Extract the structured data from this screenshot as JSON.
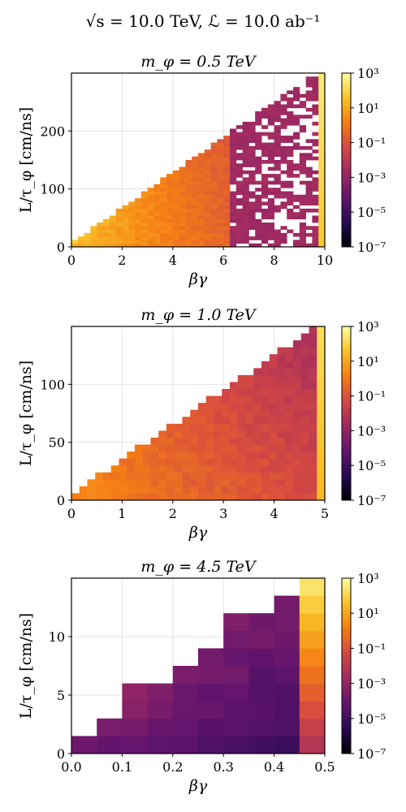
{
  "figure": {
    "suptitle": "√s = 10.0 TeV, ℒ = 10.0 ab⁻¹"
  },
  "colorbar": {
    "colormap": "inferno",
    "scale": "log",
    "range": [
      1e-07,
      1000
    ],
    "tick_labels": [
      "10³",
      "10¹",
      "10⁻¹",
      "10⁻³",
      "10⁻⁵",
      "10⁻⁷"
    ],
    "tick_values": [
      1000,
      10,
      0.1,
      0.001,
      1e-05,
      1e-07
    ]
  },
  "chart_data": [
    {
      "type": "heatmap",
      "title": "m_φ = 0.5 TeV",
      "xlabel": "βγ",
      "ylabel": "L/τ_φ [cm/ns]",
      "xlim": [
        0,
        10
      ],
      "ylim": [
        0,
        300
      ],
      "xticks": [
        0,
        2,
        4,
        6,
        8,
        10
      ],
      "yticks": [
        0,
        100,
        200
      ],
      "grid": true,
      "nx": 40,
      "ny": 50,
      "log10_value_near_diagonal_low_bg": 1.7,
      "log10_value_near_diagonal_high_bg": -2.5,
      "log10_value_at_bottom_low_bg": 1.2,
      "log10_value_at_bottom_high_bg": -1.5,
      "last_column_log10_value": 2.5,
      "diagonal_slope_per_unit_bg": 30.5,
      "sparse_region_start_bg": 6.3
    },
    {
      "type": "heatmap",
      "title": "m_φ = 1.0 TeV",
      "xlabel": "βγ",
      "ylabel": "L/τ_φ [cm/ns]",
      "xlim": [
        0,
        5
      ],
      "ylim": [
        0,
        150
      ],
      "xticks": [
        0,
        1,
        2,
        3,
        4,
        5
      ],
      "yticks": [
        0,
        50,
        100
      ],
      "grid": true,
      "nx": 32,
      "ny": 25,
      "log10_value_near_diagonal_low_bg": 0.6,
      "log10_value_near_diagonal_high_bg": -2.5,
      "log10_value_at_bottom_low_bg": 0.3,
      "log10_value_at_bottom_high_bg": -1.3,
      "last_column_log10_value": 2.2,
      "diagonal_slope_per_unit_bg": 30.0,
      "sparse_region_start_bg": 99
    },
    {
      "type": "heatmap",
      "title": "m_φ = 4.5 TeV",
      "xlabel": "βγ",
      "ylabel": "L/τ_φ [cm/ns]",
      "xlim": [
        0,
        0.5
      ],
      "ylim": [
        0,
        15
      ],
      "xticks": [
        0.0,
        0.1,
        0.2,
        0.3,
        0.4,
        0.5
      ],
      "xtick_labels": [
        "0.0",
        "0.1",
        "0.2",
        "0.3",
        "0.4",
        "0.5"
      ],
      "yticks": [
        0,
        5,
        10
      ],
      "grid": true,
      "nx": 10,
      "ny": 10,
      "log10_value_near_diagonal_low_bg": -3.0,
      "log10_value_near_diagonal_high_bg": -3.9,
      "log10_value_at_bottom_low_bg": -4.3,
      "log10_value_at_bottom_high_bg": -5.2,
      "last_column_log10_value": 1.6,
      "last_column_top_log10_value": 2.6,
      "last_column_bottom_log10_value": -2.4,
      "diagonal_slope_per_unit_bg": 30.0,
      "sparse_region_start_bg": 99
    }
  ]
}
